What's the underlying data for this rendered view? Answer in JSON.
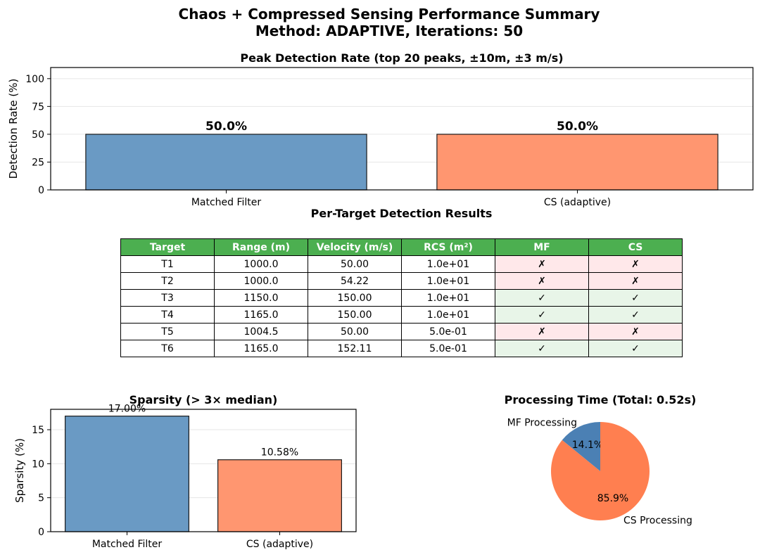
{
  "suptitle": {
    "line1": "Chaos + Compressed Sensing Performance Summary",
    "line2": "Method: ADAPTIVE, Iterations: 50"
  },
  "colors": {
    "mf": "#6a9ac4",
    "cs": "#ff9670",
    "pie_mf": "#4b80b4",
    "pie_cs": "#ff7f50",
    "table_header": "#4caf50",
    "row_fail": "#ffe8ea",
    "row_pass": "#e8f5e8",
    "grid": "#e6e6e6"
  },
  "chart_data": [
    {
      "type": "bar",
      "title": "Peak Detection Rate (top 20 peaks, ±10m, ±3 m/s)",
      "categories": [
        "Matched Filter",
        "CS (adaptive)"
      ],
      "values": [
        50.0,
        50.0
      ],
      "data_labels": [
        "50.0%",
        "50.0%"
      ],
      "xlabel": "",
      "ylabel": "Detection Rate (%)",
      "ylim": [
        0,
        110
      ],
      "yticks": [
        0,
        25,
        50,
        75,
        100
      ],
      "grid": true
    },
    {
      "type": "bar",
      "title": "Sparsity (> 3× median)",
      "categories": [
        "Matched Filter",
        "CS (adaptive)"
      ],
      "values": [
        17.0,
        10.58
      ],
      "data_labels": [
        "17.00%",
        "10.58%"
      ],
      "xlabel": "",
      "ylabel": "Sparsity (%)",
      "ylim": [
        0,
        18.0
      ],
      "yticks": [
        0,
        5,
        10,
        15
      ],
      "grid": true
    },
    {
      "type": "pie",
      "title": "Processing Time (Total: 0.52s)",
      "labels": [
        "MF Processing",
        "CS Processing"
      ],
      "values": [
        14.1,
        85.9
      ],
      "pct_labels": [
        "14.1%",
        "85.9%"
      ]
    }
  ],
  "table": {
    "title": "Per-Target Detection Results",
    "headers": [
      "Target",
      "Range (m)",
      "Velocity (m/s)",
      "RCS (m²)",
      "MF",
      "CS"
    ],
    "rows": [
      [
        "T1",
        "1000.0",
        "50.00",
        "1.0e+01",
        "✗",
        "✗"
      ],
      [
        "T2",
        "1000.0",
        "54.22",
        "1.0e+01",
        "✗",
        "✗"
      ],
      [
        "T3",
        "1150.0",
        "150.00",
        "1.0e+01",
        "✓",
        "✓"
      ],
      [
        "T4",
        "1165.0",
        "150.00",
        "1.0e+01",
        "✓",
        "✓"
      ],
      [
        "T5",
        "1004.5",
        "50.00",
        "5.0e-01",
        "✗",
        "✗"
      ],
      [
        "T6",
        "1165.0",
        "152.11",
        "5.0e-01",
        "✓",
        "✓"
      ]
    ]
  }
}
